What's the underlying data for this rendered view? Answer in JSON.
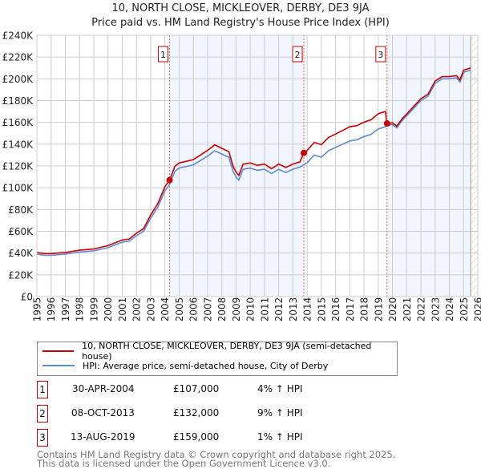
{
  "chart_data": {
    "type": "line",
    "title": "10, NORTH CLOSE, MICKLEOVER, DERBY, DE3 9JA",
    "subtitle": "Price paid vs. HM Land Registry's House Price Index (HPI)",
    "xlim": [
      1995,
      2026
    ],
    "ylim": [
      0,
      240000
    ],
    "ytick_labels": [
      "£0",
      "£20K",
      "£40K",
      "£60K",
      "£80K",
      "£100K",
      "£120K",
      "£140K",
      "£160K",
      "£180K",
      "£200K",
      "£220K",
      "£240K"
    ],
    "xtick_labels": [
      "1995",
      "1996",
      "1997",
      "1998",
      "1999",
      "2000",
      "2001",
      "2002",
      "2003",
      "2004",
      "2005",
      "2006",
      "2007",
      "2008",
      "2009",
      "2010",
      "2011",
      "2012",
      "2013",
      "2014",
      "2015",
      "2016",
      "2017",
      "2018",
      "2019",
      "2020",
      "2021",
      "2022",
      "2023",
      "2024",
      "2025",
      "2026"
    ],
    "grid": true,
    "x": [
      1995,
      1995.5,
      1996,
      1997,
      1998,
      1999,
      2000,
      2001,
      2001.5,
      2002,
      2002.5,
      2003,
      2003.5,
      2004,
      2004.33,
      2004.7,
      2005,
      2006,
      2006.5,
      2007,
      2007.5,
      2008,
      2008.5,
      2008.8,
      2009,
      2009.2,
      2009.5,
      2010,
      2010.5,
      2011,
      2011.5,
      2012,
      2012.5,
      2013,
      2013.5,
      2013.77,
      2014,
      2014.5,
      2015,
      2015.5,
      2016,
      2016.5,
      2017,
      2017.5,
      2018,
      2018.5,
      2019,
      2019.5,
      2019.62,
      2020,
      2020.3,
      2020.7,
      2021,
      2021.5,
      2022,
      2022.5,
      2023,
      2023.5,
      2024,
      2024.5,
      2024.75,
      2025,
      2025.5
    ],
    "series": [
      {
        "name": "10, NORTH CLOSE, MICKLEOVER, DERBY, DE3 9JA (semi-detached house)",
        "color": "#cc0000",
        "values": [
          40600,
          39500,
          39500,
          40600,
          42600,
          43700,
          46800,
          52000,
          53000,
          58200,
          62400,
          74900,
          85300,
          100900,
          107000,
          119600,
          122700,
          125800,
          130000,
          134200,
          139400,
          136200,
          133100,
          119600,
          114400,
          111300,
          121700,
          122700,
          120600,
          121700,
          117500,
          121700,
          118600,
          121700,
          123800,
          132000,
          134100,
          141700,
          139500,
          146100,
          149300,
          152600,
          155900,
          157000,
          160200,
          162400,
          167900,
          170000,
          159000,
          159600,
          156600,
          163600,
          167700,
          174700,
          181800,
          185800,
          198000,
          202000,
          202000,
          203000,
          199000,
          208000,
          210000
        ]
      },
      {
        "name": "HPI: Average price, semi-detached house, City of Derby",
        "color": "#5b8bd0",
        "values": [
          39000,
          38000,
          38000,
          39000,
          41000,
          42000,
          45000,
          50000,
          51000,
          56000,
          60000,
          72000,
          82000,
          97000,
          103000,
          115000,
          118000,
          121000,
          125000,
          129000,
          134000,
          131000,
          128000,
          115000,
          110000,
          107000,
          117000,
          118000,
          116000,
          117000,
          113000,
          117000,
          114000,
          117000,
          119000,
          121000,
          123000,
          130000,
          128000,
          134000,
          137000,
          140000,
          143000,
          144000,
          147000,
          149000,
          154000,
          156000,
          157000,
          158000,
          155000,
          162000,
          166000,
          173000,
          180000,
          184000,
          196000,
          200000,
          200000,
          201000,
          197000,
          206000,
          208000
        ]
      }
    ],
    "sales": [
      {
        "label": "1",
        "x": 2004.33,
        "price": 107000,
        "date": "30-APR-2004",
        "price_text": "£107,000",
        "hpi_text": "4% ↑ HPI"
      },
      {
        "label": "2",
        "x": 2013.77,
        "price": 132000,
        "date": "08-OCT-2013",
        "price_text": "£132,000",
        "hpi_text": "9% ↑ HPI"
      },
      {
        "label": "3",
        "x": 2019.62,
        "price": 159000,
        "date": "13-AUG-2019",
        "price_text": "£159,000",
        "hpi_text": "1% ↑ HPI"
      }
    ],
    "shaded_ranges": [
      [
        2004.33,
        2013.77
      ],
      [
        2019.62,
        2025.5
      ]
    ],
    "forecast_from": 2025.5,
    "legend_position": "below"
  },
  "legend": {
    "red": "10, NORTH CLOSE, MICKLEOVER, DERBY, DE3 9JA (semi-detached house)",
    "blue": "HPI: Average price, semi-detached house, City of Derby"
  },
  "footer": {
    "line1": "Contains HM Land Registry data © Crown copyright and database right 2025.",
    "line2": "This data is licensed under the Open Government Licence v3.0."
  }
}
